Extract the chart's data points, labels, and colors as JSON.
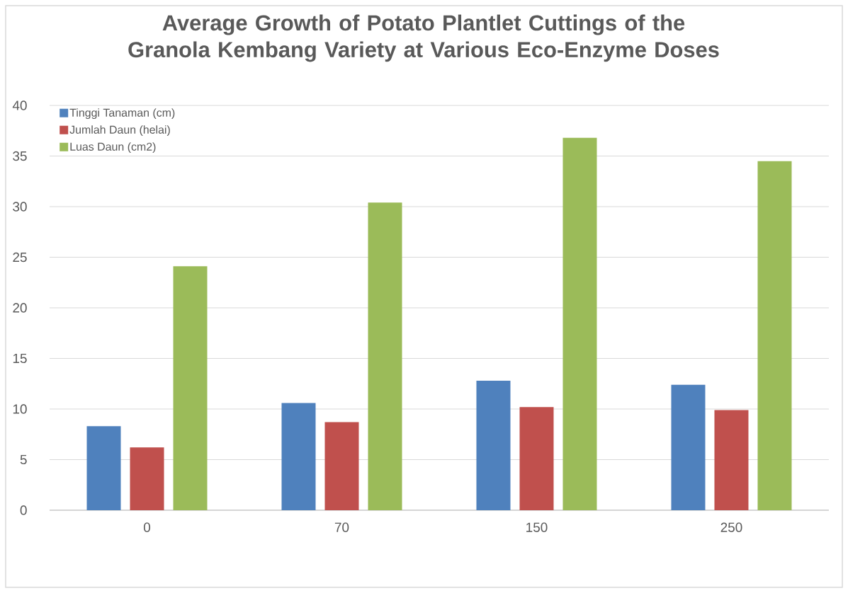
{
  "chart_data": {
    "type": "bar",
    "title": "Average Growth of Potato Plantlet Cuttings of the Granola Kembang Variety at Various Eco-Enzyme Doses",
    "categories": [
      "0",
      "70",
      "150",
      "250"
    ],
    "series": [
      {
        "name": "Tinggi Tanaman (cm)",
        "color": "#4f81bd",
        "values": [
          8.3,
          10.6,
          12.8,
          12.4
        ]
      },
      {
        "name": "Jumlah Daun (helai)",
        "color": "#c0504d",
        "values": [
          6.2,
          8.7,
          10.2,
          9.9
        ]
      },
      {
        "name": "Luas Daun (cm2)",
        "color": "#9bbb59",
        "values": [
          24.1,
          30.4,
          36.8,
          34.5
        ]
      }
    ],
    "ylim": [
      0,
      40
    ],
    "yticks": [
      0,
      5,
      10,
      15,
      20,
      25,
      30,
      35,
      40
    ],
    "grid": "y",
    "legend": "top left"
  }
}
